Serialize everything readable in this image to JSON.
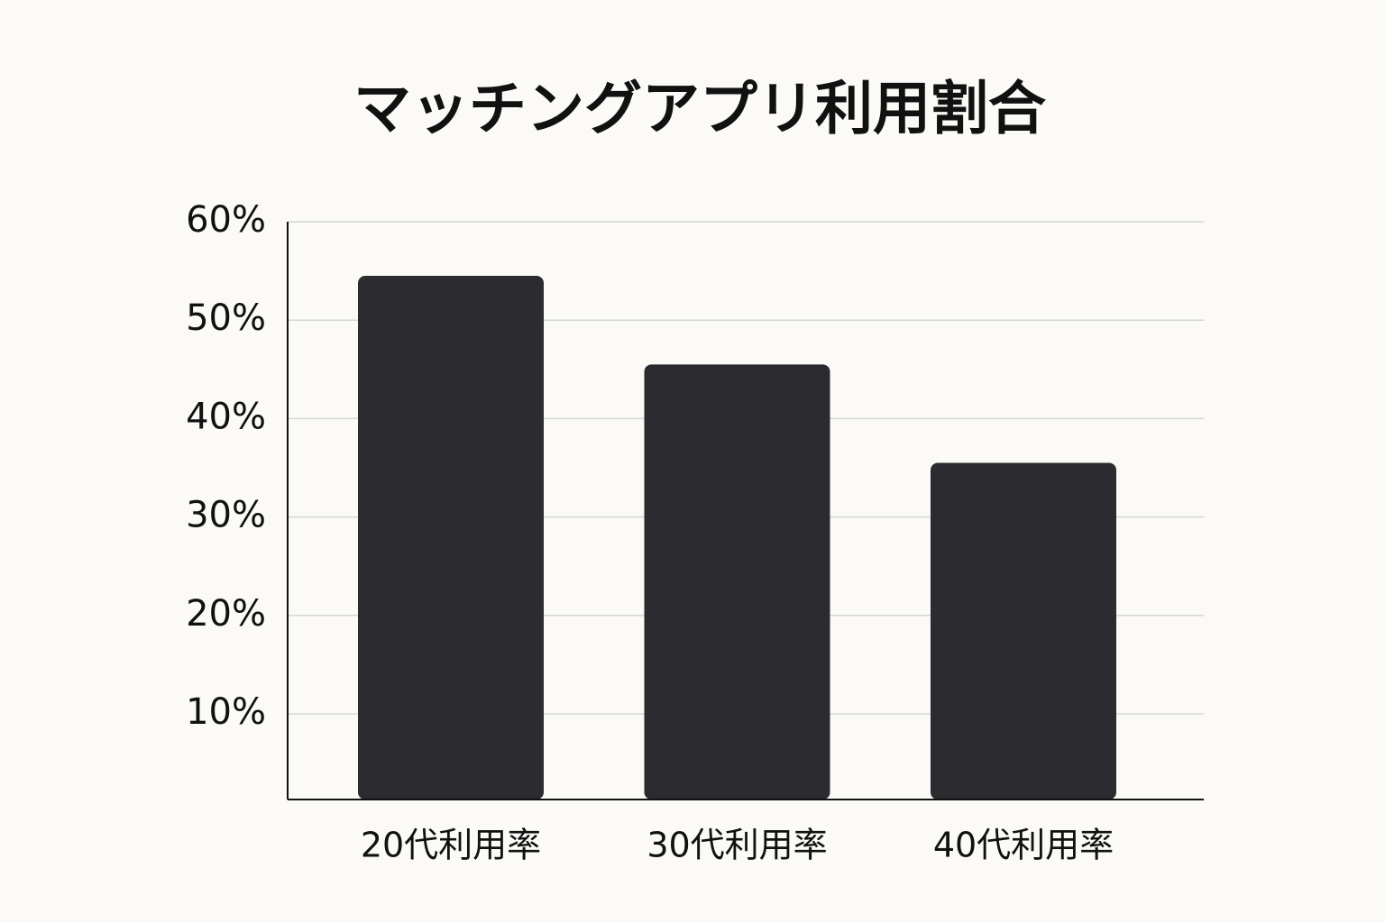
{
  "chart_data": {
    "type": "bar",
    "title": "マッチングアプリ利用割合",
    "categories": [
      "20代利用率",
      "30代利用率",
      "40代利用率"
    ],
    "values": [
      54.5,
      45.5,
      35.5
    ],
    "color": "#2b2b30",
    "ylim": [
      1.3,
      60
    ],
    "yticks": [
      {
        "value": 10,
        "label": "10%"
      },
      {
        "value": 20,
        "label": "20%"
      },
      {
        "value": 30,
        "label": "30%"
      },
      {
        "value": 40,
        "label": "40%"
      },
      {
        "value": 50,
        "label": "50%"
      },
      {
        "value": 60,
        "label": "60%"
      }
    ],
    "grid": true
  }
}
